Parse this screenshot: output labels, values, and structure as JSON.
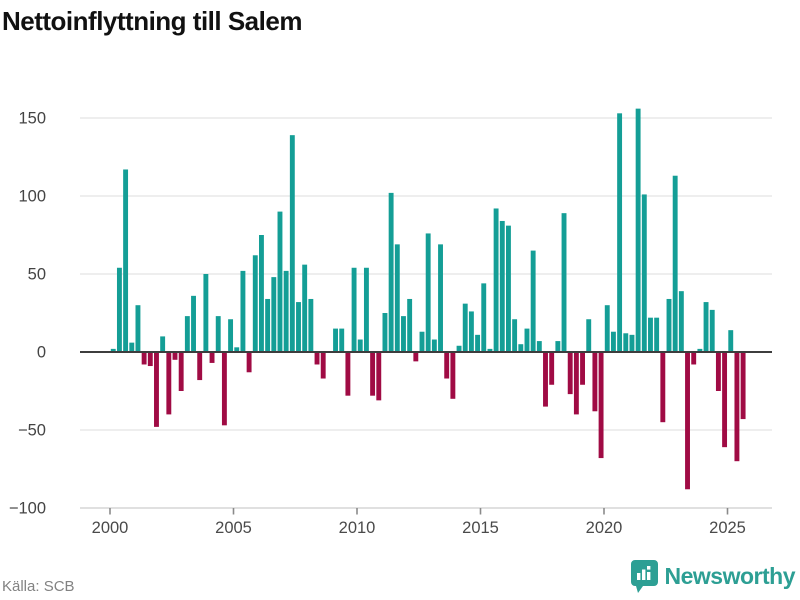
{
  "title": "Nettoinflyttning till Salem",
  "source": "Källa: SCB",
  "brand": {
    "name": "Newsworthy",
    "icon": "bar-chart-badge-icon"
  },
  "colors": {
    "positive_bar": "#149e96",
    "negative_bar": "#a00b44",
    "gridline": "#e8e8e8",
    "zero_line": "#3d3d3d",
    "axis_line": "#d9d9d9",
    "tick_mark": "#8a8a8a",
    "tick_text": "#4a4a4a",
    "brand_teal": "#2d9f94"
  },
  "chart_data": {
    "type": "bar",
    "title": "Nettoinflyttning till Salem",
    "xlabel": "",
    "ylabel": "",
    "frequency": "quarterly",
    "start_period": "2000-Q1",
    "end_period": "2025-Q3",
    "values": [
      2,
      54,
      117,
      6,
      30,
      -8,
      -9,
      -48,
      10,
      -40,
      -5,
      -25,
      23,
      36,
      -18,
      50,
      -7,
      23,
      -47,
      21,
      3,
      52,
      -13,
      62,
      75,
      34,
      48,
      90,
      52,
      139,
      32,
      56,
      34,
      -8,
      -17,
      0,
      15,
      15,
      -28,
      54,
      8,
      54,
      -28,
      -31,
      25,
      102,
      69,
      23,
      34,
      -6,
      13,
      76,
      8,
      69,
      -17,
      -30,
      4,
      31,
      26,
      11,
      44,
      2,
      92,
      84,
      81,
      21,
      5,
      15,
      65,
      7,
      -35,
      -21,
      7,
      89,
      -27,
      -40,
      -21,
      21,
      -38,
      -68,
      30,
      13,
      153,
      12,
      11,
      156,
      101,
      22,
      22,
      -45,
      34,
      113,
      39,
      -88,
      -8,
      2,
      32,
      27,
      -25,
      -61,
      14,
      -70,
      -43
    ],
    "x_ticks": [
      2000,
      2005,
      2010,
      2015,
      2020,
      2025
    ],
    "x_tick_labels": [
      "2000",
      "2005",
      "2010",
      "2015",
      "2020",
      "2025"
    ],
    "y_ticks": [
      150,
      100,
      50,
      0,
      -50,
      -100
    ],
    "y_tick_labels": [
      "150",
      "100",
      "50",
      "0",
      "−50",
      "−100"
    ],
    "ylim": [
      -100,
      160
    ],
    "grid": true,
    "legend": "none"
  }
}
